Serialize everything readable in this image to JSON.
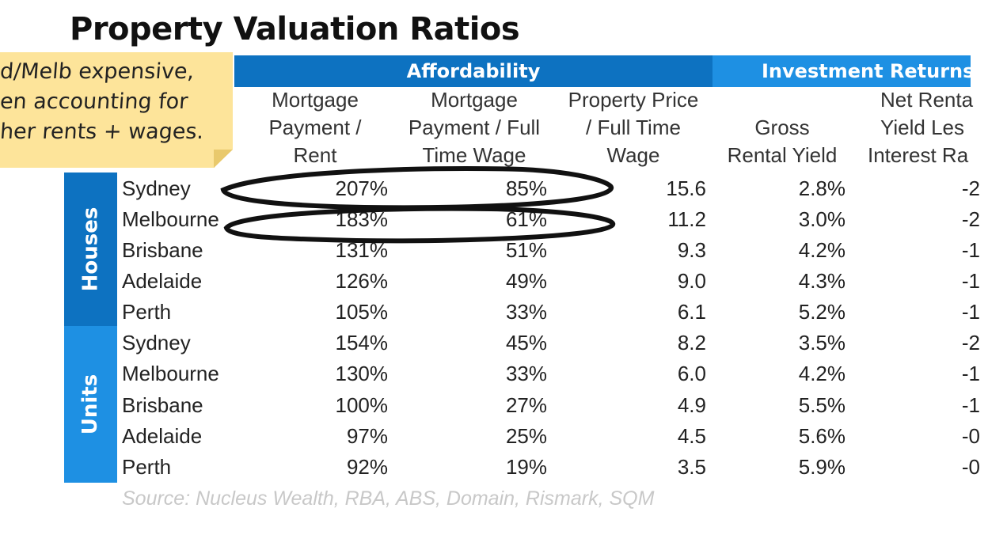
{
  "title": "Property Valuation Ratios",
  "bands": {
    "affordability": "Affordability",
    "investment": "Investment Returns"
  },
  "columns": [
    [
      "Mortgage",
      "Payment /",
      "Rent"
    ],
    [
      "Mortgage",
      "Payment / Full",
      "Time Wage"
    ],
    [
      "Property Price",
      "/ Full Time",
      "Wage"
    ],
    [
      "Gross",
      "Rental Yield"
    ],
    [
      "Net Renta",
      "Yield Les",
      "Interest Ra"
    ]
  ],
  "groups": {
    "houses": "Houses",
    "units": "Units"
  },
  "rows": [
    {
      "city": "Sydney",
      "v1": "207%",
      "v2": "85%",
      "v3": "15.6",
      "v4": "2.8%",
      "v5": "-2"
    },
    {
      "city": "Melbourne",
      "v1": "183%",
      "v2": "61%",
      "v3": "11.2",
      "v4": "3.0%",
      "v5": "-2"
    },
    {
      "city": "Brisbane",
      "v1": "131%",
      "v2": "51%",
      "v3": "9.3",
      "v4": "4.2%",
      "v5": "-1"
    },
    {
      "city": "Adelaide",
      "v1": "126%",
      "v2": "49%",
      "v3": "9.0",
      "v4": "4.3%",
      "v5": "-1"
    },
    {
      "city": "Perth",
      "v1": "105%",
      "v2": "33%",
      "v3": "6.1",
      "v4": "5.2%",
      "v5": "-1"
    },
    {
      "city": "Sydney",
      "v1": "154%",
      "v2": "45%",
      "v3": "8.2",
      "v4": "3.5%",
      "v5": "-2"
    },
    {
      "city": "Melbourne",
      "v1": "130%",
      "v2": "33%",
      "v3": "6.0",
      "v4": "4.2%",
      "v5": "-1"
    },
    {
      "city": "Brisbane",
      "v1": "100%",
      "v2": "27%",
      "v3": "4.9",
      "v4": "5.5%",
      "v5": "-1"
    },
    {
      "city": "Adelaide",
      "v1": "97%",
      "v2": "25%",
      "v3": "4.5",
      "v4": "5.6%",
      "v5": "-0"
    },
    {
      "city": "Perth",
      "v1": "92%",
      "v2": "19%",
      "v3": "3.5",
      "v4": "5.9%",
      "v5": "-0"
    }
  ],
  "source": "Source: Nucleus Wealth, RBA, ABS, Domain, Rismark, SQM",
  "note": {
    "lines": [
      "d/Melb expensive,",
      "en accounting for",
      "her rents + wages."
    ],
    "color": "#fde49a"
  },
  "colors": {
    "dark_blue": "#0d72c1",
    "light_blue": "#1e90e3",
    "source_gray": "#c8c8c8"
  }
}
